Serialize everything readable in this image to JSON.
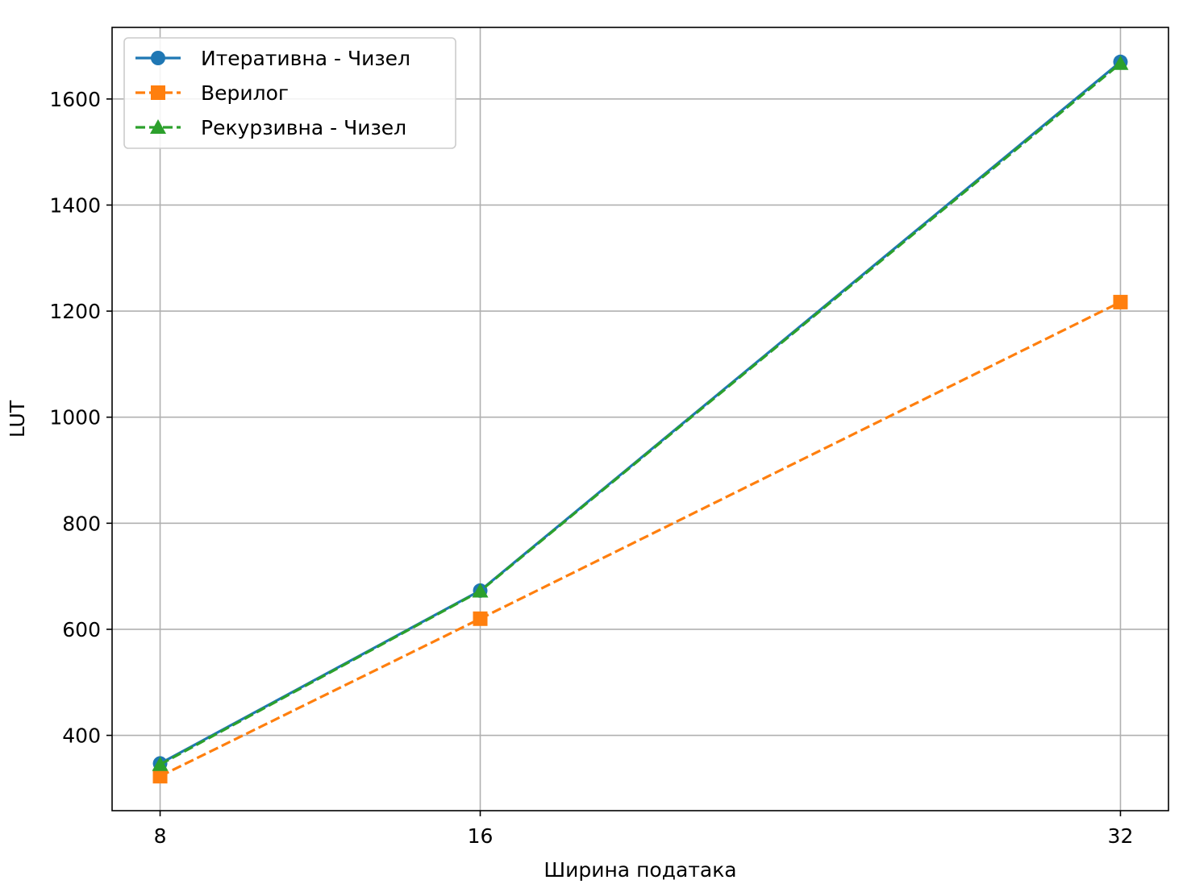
{
  "chart_data": {
    "type": "line",
    "title": "",
    "xlabel": "Ширина података",
    "ylabel": "LUT",
    "x": [
      8,
      16,
      32
    ],
    "x_ticks": [
      "8",
      "16",
      "32"
    ],
    "y_ticks": [
      "400",
      "600",
      "800",
      "1000",
      "1200",
      "1400",
      "1600"
    ],
    "y_tick_values": [
      400,
      600,
      800,
      1000,
      1200,
      1400,
      1600
    ],
    "xlim": [
      6.8,
      33.2
    ],
    "ylim": [
      258,
      1735
    ],
    "grid": true,
    "legend_position": "top-left",
    "series": [
      {
        "name": "Итеративна - Чизел",
        "values": [
          347,
          673,
          1670
        ],
        "color": "#1f77b4",
        "marker": "circle",
        "linestyle": "solid"
      },
      {
        "name": "Верилог",
        "values": [
          323,
          620,
          1217
        ],
        "color": "#ff7f0e",
        "marker": "square",
        "linestyle": "dashed"
      },
      {
        "name": "Рекурзивна - Чизел",
        "values": [
          345,
          672,
          1667
        ],
        "color": "#2ca02c",
        "marker": "triangle",
        "linestyle": "dashed"
      }
    ]
  }
}
